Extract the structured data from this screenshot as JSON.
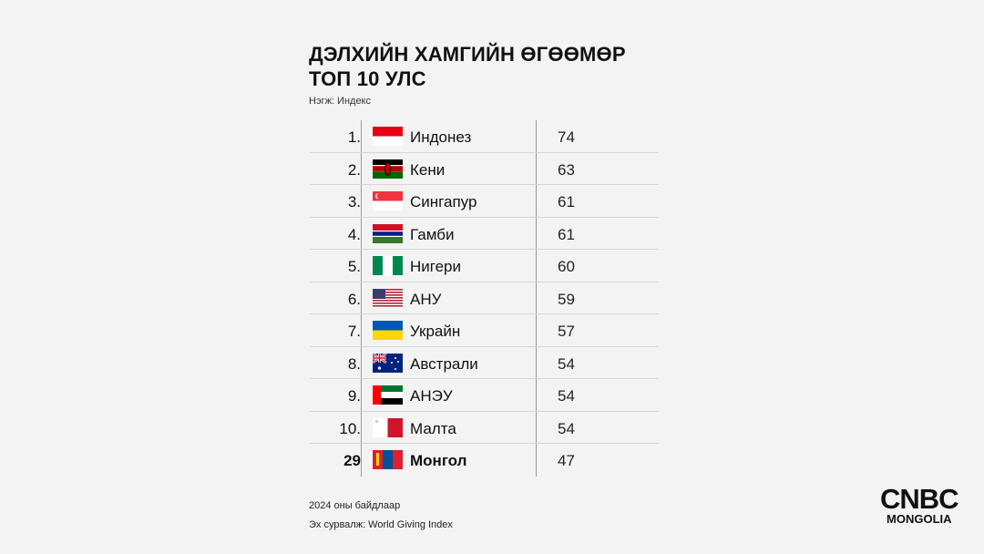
{
  "title_line1": "ДЭЛХИЙН ХАМГИЙН ӨГӨӨМӨР",
  "title_line2": "ТОП 10 УЛС",
  "unit": "Нэгж:  Индекс",
  "rows": [
    {
      "rank": "1.",
      "country": "Индонез",
      "value": "74",
      "flag": "indonesia"
    },
    {
      "rank": "2.",
      "country": "Кени",
      "value": "63",
      "flag": "kenya"
    },
    {
      "rank": "3.",
      "country": "Сингапур",
      "value": "61",
      "flag": "singapore"
    },
    {
      "rank": "4.",
      "country": "Гамби",
      "value": "61",
      "flag": "gambia"
    },
    {
      "rank": "5.",
      "country": "Нигери",
      "value": "60",
      "flag": "nigeria"
    },
    {
      "rank": "6.",
      "country": "АНУ",
      "value": "59",
      "flag": "usa"
    },
    {
      "rank": "7.",
      "country": "Украйн",
      "value": "57",
      "flag": "ukraine"
    },
    {
      "rank": "8.",
      "country": "Австрали",
      "value": "54",
      "flag": "australia"
    },
    {
      "rank": "9.",
      "country": "АНЭУ",
      "value": "54",
      "flag": "uae"
    },
    {
      "rank": "10.",
      "country": "Малта",
      "value": "54",
      "flag": "malta"
    },
    {
      "rank": "29",
      "country": "Монгол",
      "value": "47",
      "flag": "mongolia",
      "highlight": true
    }
  ],
  "footer": {
    "note": "2024 оны байдлаар",
    "source": "Эх сурвалж: World Giving Index"
  },
  "logo": {
    "line1": "CNBC",
    "line2": "MONGOLIA"
  }
}
